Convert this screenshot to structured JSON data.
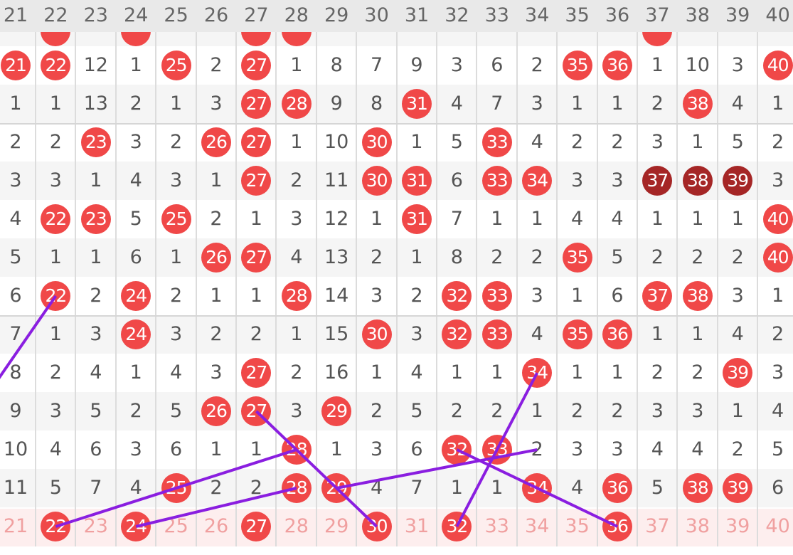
{
  "columns": [
    "21",
    "22",
    "23",
    "24",
    "25",
    "26",
    "27",
    "28",
    "29",
    "30",
    "31",
    "32",
    "33",
    "34",
    "35",
    "36",
    "37",
    "38",
    "39",
    "40"
  ],
  "colors": {
    "ball": "#f04848",
    "ball_dark": "#a52626",
    "line": "#8a1ee0",
    "footer_bg": "#fdeeee",
    "footer_text": "#f0a0a0"
  },
  "partial_row_balls": [
    "22",
    "24",
    "27",
    "28",
    "37"
  ],
  "rows": [
    [
      "21*",
      "22*",
      "12",
      "1",
      "25*",
      "2",
      "27*",
      "1",
      "8",
      "7",
      "9",
      "3",
      "6",
      "2",
      "35*",
      "36*",
      "1",
      "10",
      "3",
      "40*"
    ],
    [
      "1",
      "1",
      "13",
      "2",
      "1",
      "3",
      "27*",
      "28*",
      "9",
      "8",
      "31*",
      "4",
      "7",
      "3",
      "1",
      "1",
      "2",
      "38*",
      "4",
      "1"
    ],
    [
      "2",
      "2",
      "23*",
      "3",
      "2",
      "26*",
      "27*",
      "1",
      "10",
      "30*",
      "1",
      "5",
      "33*",
      "4",
      "2",
      "2",
      "3",
      "1",
      "5",
      "2"
    ],
    [
      "3",
      "3",
      "1",
      "4",
      "3",
      "1",
      "27*",
      "2",
      "11",
      "30*",
      "31*",
      "6",
      "33*",
      "34*",
      "3",
      "3",
      "37#",
      "38#",
      "39#",
      "3"
    ],
    [
      "4",
      "22*",
      "23*",
      "5",
      "25*",
      "2",
      "1",
      "3",
      "12",
      "1",
      "31*",
      "7",
      "1",
      "1",
      "4",
      "4",
      "1",
      "1",
      "1",
      "40*"
    ],
    [
      "5",
      "1",
      "1",
      "6",
      "1",
      "26*",
      "27*",
      "4",
      "13",
      "2",
      "1",
      "8",
      "2",
      "2",
      "35*",
      "5",
      "2",
      "2",
      "2",
      "40*"
    ],
    [
      "6",
      "22*",
      "2",
      "24*",
      "2",
      "1",
      "1",
      "28*",
      "14",
      "3",
      "2",
      "32*",
      "33*",
      "3",
      "1",
      "6",
      "37*",
      "38*",
      "3",
      "1"
    ],
    [
      "7",
      "1",
      "3",
      "24*",
      "3",
      "2",
      "2",
      "1",
      "15",
      "30*",
      "3",
      "32*",
      "33*",
      "4",
      "35*",
      "36*",
      "1",
      "1",
      "4",
      "2"
    ],
    [
      "8",
      "2",
      "4",
      "1",
      "4",
      "3",
      "27*",
      "2",
      "16",
      "1",
      "4",
      "1",
      "1",
      "34*",
      "1",
      "1",
      "2",
      "2",
      "39*",
      "3"
    ],
    [
      "9",
      "3",
      "5",
      "2",
      "5",
      "26*",
      "27*",
      "3",
      "29*",
      "2",
      "5",
      "2",
      "2",
      "1",
      "2",
      "2",
      "3",
      "3",
      "1",
      "4"
    ],
    [
      "10",
      "4",
      "6",
      "3",
      "6",
      "1",
      "1",
      "28*",
      "1",
      "3",
      "6",
      "32*",
      "33*",
      "2",
      "3",
      "3",
      "4",
      "4",
      "2",
      "5"
    ],
    [
      "11",
      "5",
      "7",
      "4",
      "25*",
      "2",
      "2",
      "28*",
      "29*",
      "4",
      "7",
      "1",
      "1",
      "34*",
      "4",
      "36*",
      "5",
      "38*",
      "39*",
      "6"
    ]
  ],
  "footer_row": [
    "21",
    "22*",
    "23",
    "24*",
    "25",
    "26",
    "27*",
    "28",
    "29",
    "30*",
    "31",
    "32*",
    "33",
    "34",
    "35",
    "36*",
    "37",
    "38",
    "39",
    "40"
  ],
  "trend_lines": [
    [
      [
        "21",
        8
      ],
      [
        "22",
        7
      ]
    ],
    [
      [
        "22",
        13
      ],
      [
        "28",
        11
      ]
    ],
    [
      [
        "24",
        13
      ],
      [
        "28",
        12
      ]
    ],
    [
      [
        "27",
        10
      ],
      [
        "30",
        13
      ]
    ],
    [
      [
        "29",
        12
      ],
      [
        "34",
        11
      ]
    ],
    [
      [
        "32",
        13
      ],
      [
        "34",
        9
      ]
    ],
    [
      [
        "32",
        11
      ],
      [
        "36",
        13
      ]
    ]
  ]
}
